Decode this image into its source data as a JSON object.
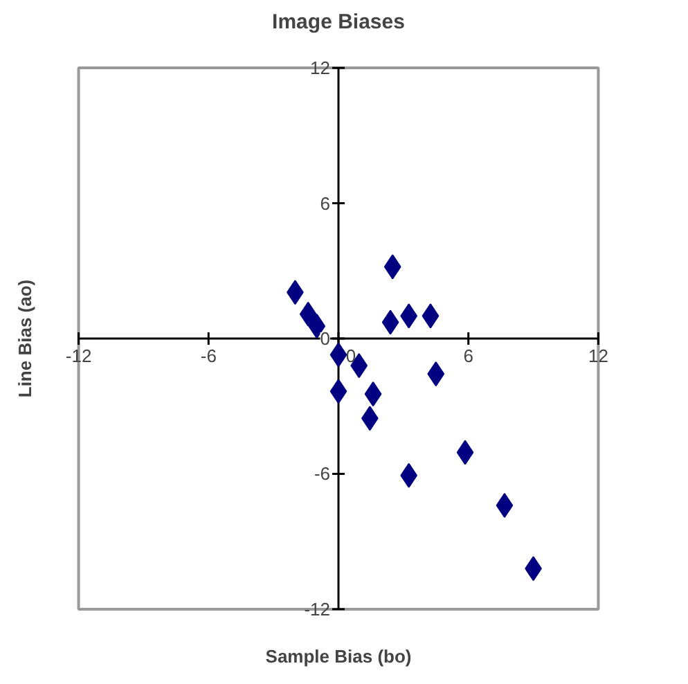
{
  "chart_data": {
    "type": "scatter",
    "title": "Image Biases",
    "xlabel": "Sample Bias (bo)",
    "ylabel": "Line Bias (ao)",
    "x": [
      -2.0,
      -1.4,
      -1.0,
      2.5,
      2.4,
      3.25,
      4.25,
      0.0,
      0.95,
      0.0,
      1.6,
      1.45,
      4.5,
      5.85,
      3.25,
      7.67,
      9.0
    ],
    "values": [
      2.05,
      1.08,
      0.55,
      3.18,
      0.72,
      1.0,
      1.0,
      -0.72,
      -1.2,
      -2.34,
      -2.46,
      -3.54,
      -1.57,
      -5.05,
      -6.07,
      -7.4,
      -10.2
    ],
    "color": "#000080",
    "marker": "diamond",
    "xlim": [
      -12,
      12
    ],
    "ylim": [
      -12,
      12
    ],
    "xticks": [
      -12,
      -6,
      0,
      6,
      12
    ],
    "yticks": [
      -12,
      -6,
      0,
      6,
      12
    ],
    "grid": false
  }
}
